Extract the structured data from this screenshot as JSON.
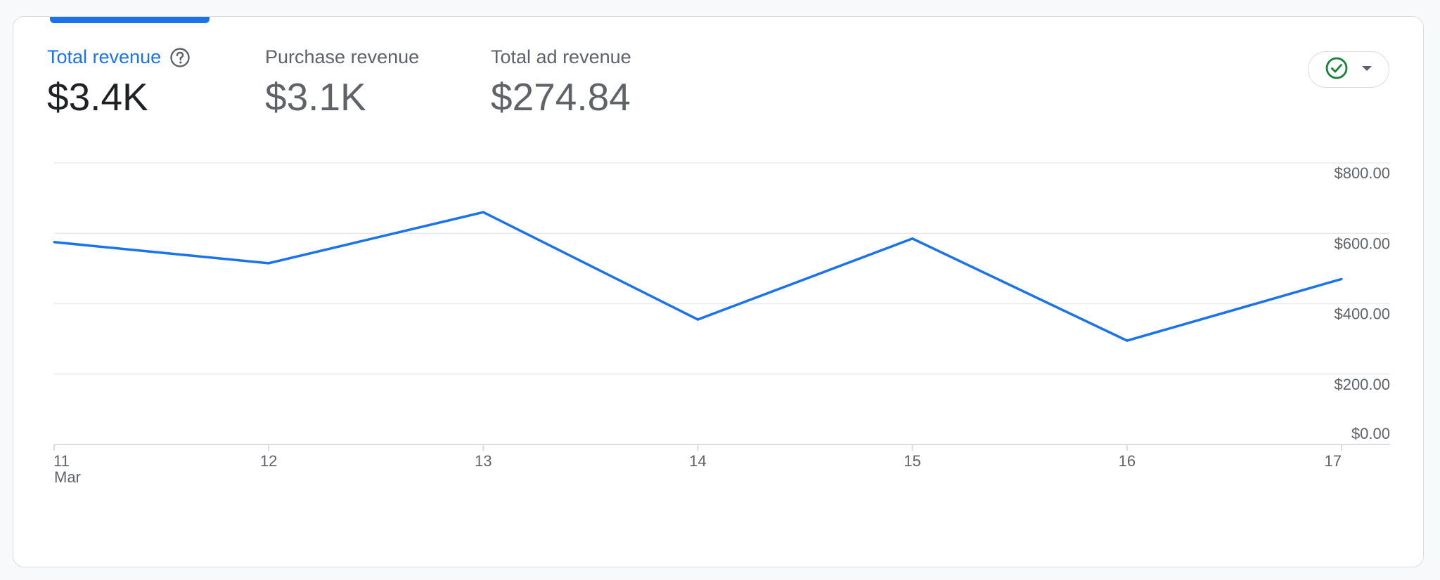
{
  "metrics": [
    {
      "label": "Total revenue",
      "value": "$3.4K",
      "active": true
    },
    {
      "label": "Purchase revenue",
      "value": "$3.1K",
      "active": false
    },
    {
      "label": "Total ad revenue",
      "value": "$274.84",
      "active": false
    }
  ],
  "colors": {
    "accent": "#1a73e8",
    "line": "#1a73e8",
    "check": "#188038"
  },
  "icons": {
    "help": "help-circle-icon",
    "compare": "check-circle-icon",
    "dropdown": "caret-down-icon"
  },
  "chart_data": {
    "type": "line",
    "x": [
      "11",
      "12",
      "13",
      "14",
      "15",
      "16",
      "17"
    ],
    "x_sublabel": "Mar",
    "series": [
      {
        "values": [
          575,
          515,
          660,
          355,
          585,
          295,
          470
        ]
      }
    ],
    "yticks": [
      "$800.00",
      "$600.00",
      "$400.00",
      "$200.00",
      "$0.00"
    ],
    "ytick_values": [
      800,
      600,
      400,
      200,
      0
    ],
    "ylim": [
      0,
      800
    ],
    "grid": true,
    "yaxis_position": "right"
  }
}
